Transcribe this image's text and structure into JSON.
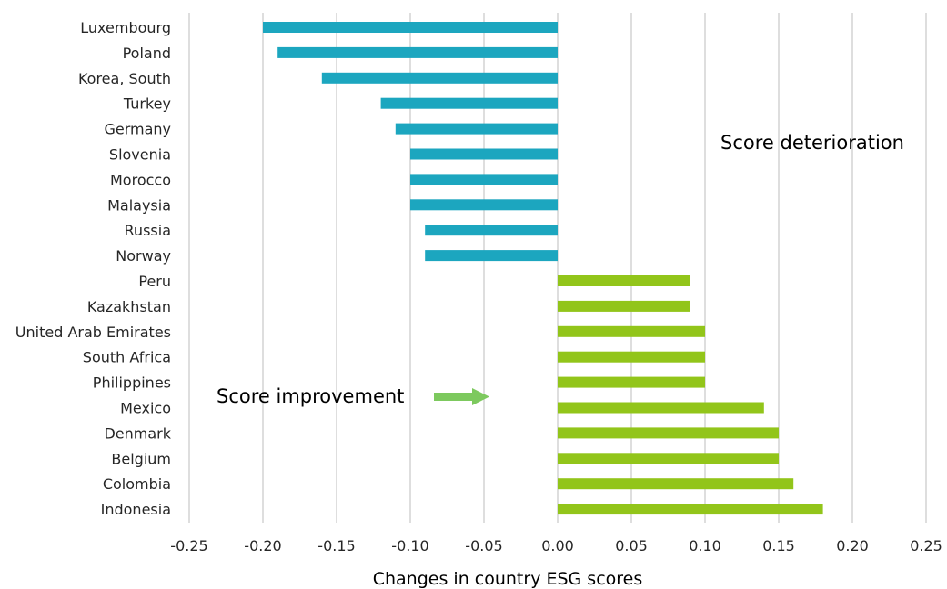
{
  "chart_data": {
    "type": "bar",
    "orientation": "horizontal",
    "xlabel": "Changes in country ESG scores",
    "xlim": [
      -0.25,
      0.25
    ],
    "xticks": [
      -0.25,
      -0.2,
      -0.15,
      -0.1,
      -0.05,
      0.0,
      0.05,
      0.1,
      0.15,
      0.2,
      0.25
    ],
    "xtick_labels": [
      "-0.25",
      "-0.20",
      "-0.15",
      "-0.10",
      "-0.05",
      "0.00",
      "0.05",
      "0.10",
      "0.15",
      "0.20",
      "0.25"
    ],
    "grid": "vertical",
    "categories": [
      "Luxembourg",
      "Poland",
      "Korea, South",
      "Turkey",
      "Germany",
      "Slovenia",
      "Morocco",
      "Malaysia",
      "Russia",
      "Norway",
      "Peru",
      "Kazakhstan",
      "United Arab Emirates",
      "South Africa",
      "Philippines",
      "Mexico",
      "Denmark",
      "Belgium",
      "Colombia",
      "Indonesia"
    ],
    "values": [
      -0.2,
      -0.19,
      -0.16,
      -0.12,
      -0.11,
      -0.1,
      -0.1,
      -0.1,
      -0.09,
      -0.09,
      0.09,
      0.09,
      0.1,
      0.1,
      0.1,
      0.14,
      0.15,
      0.15,
      0.16,
      0.18
    ],
    "colors": {
      "negative": "#1ca6bf",
      "positive": "#92c51a",
      "arrow": "#7dc95e"
    },
    "annotations": [
      {
        "text": "Score deterioration"
      },
      {
        "text": "Score improvement"
      }
    ]
  }
}
